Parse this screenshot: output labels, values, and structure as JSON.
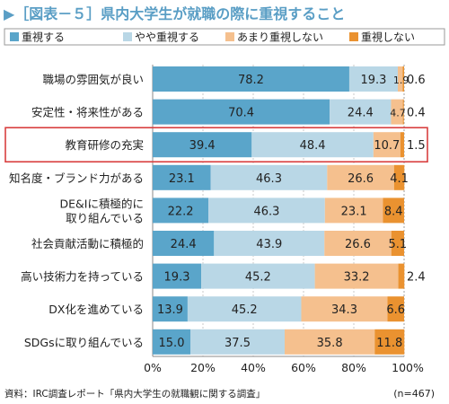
{
  "title": "▶［図表－５］県内大学生が就職の際に重視すること",
  "source": "資料：IRC調査レポート「県内大学生の就職観に関する調査」",
  "sample": "(n=467)",
  "colors": {
    "title": "#5a9ec5",
    "heavy": "#5aa5ca",
    "some": "#b9d7e6",
    "little": "#f5c08e",
    "none": "#ea9230",
    "highlight": "#d94040",
    "axis": "#888888",
    "grid": "#bbbbbb"
  },
  "chart_data": {
    "type": "bar",
    "orientation": "horizontal",
    "stacked": true,
    "percent": true,
    "xlim": [
      0,
      100
    ],
    "xticks": [
      "0%",
      "20%",
      "40%",
      "60%",
      "80%",
      "100%"
    ],
    "legend_position": "top",
    "highlight_category": "教育研修の充実",
    "categories": [
      "職場の雰囲気が良い",
      "安定性・将来性がある",
      "教育研修の充実",
      "知名度・ブランド力がある",
      "DE&Iに積極的に取り組んでいる",
      "社会貢献活動に積極的",
      "高い技術力を持っている",
      "DX化を進めている",
      "SDGsに取り組んでいる"
    ],
    "category_lines": [
      [
        "職場の雰囲気が良い"
      ],
      [
        "安定性・将来性がある"
      ],
      [
        "教育研修の充実"
      ],
      [
        "知名度・ブランド力がある"
      ],
      [
        "DE&Iに積極的に",
        "取り組んでいる"
      ],
      [
        "社会貢献活動に積極的"
      ],
      [
        "高い技術力を持っている"
      ],
      [
        "DX化を進めている"
      ],
      [
        "SDGsに取り組んでいる"
      ]
    ],
    "series": [
      {
        "name": "重視する",
        "color_key": "heavy",
        "values": [
          78.2,
          70.4,
          39.4,
          23.1,
          22.2,
          24.4,
          19.3,
          13.9,
          15.0
        ]
      },
      {
        "name": "やや重視する",
        "color_key": "some",
        "values": [
          19.3,
          24.4,
          48.4,
          46.3,
          46.3,
          43.9,
          45.2,
          45.2,
          37.5
        ]
      },
      {
        "name": "あまり重視しない",
        "color_key": "little",
        "values": [
          1.9,
          4.7,
          10.7,
          26.6,
          23.1,
          26.6,
          33.2,
          34.3,
          35.8
        ]
      },
      {
        "name": "重視しない",
        "color_key": "none",
        "values": [
          0.6,
          0.4,
          1.5,
          4.1,
          8.4,
          5.1,
          2.4,
          6.6,
          11.8
        ]
      }
    ],
    "labels": [
      [
        "78.2",
        "19.3",
        "1.9",
        "0.6"
      ],
      [
        "70.4",
        "24.4",
        "4.7",
        "0.4"
      ],
      [
        "39.4",
        "48.4",
        "10.7",
        "1.5"
      ],
      [
        "23.1",
        "46.3",
        "26.6",
        "4.1"
      ],
      [
        "22.2",
        "46.3",
        "23.1",
        "8.4"
      ],
      [
        "24.4",
        "43.9",
        "26.6",
        "5.1"
      ],
      [
        "19.3",
        "45.2",
        "33.2",
        "2.4"
      ],
      [
        "13.9",
        "45.2",
        "34.3",
        "6.6"
      ],
      [
        "15.0",
        "37.5",
        "35.8",
        "11.8"
      ]
    ]
  }
}
